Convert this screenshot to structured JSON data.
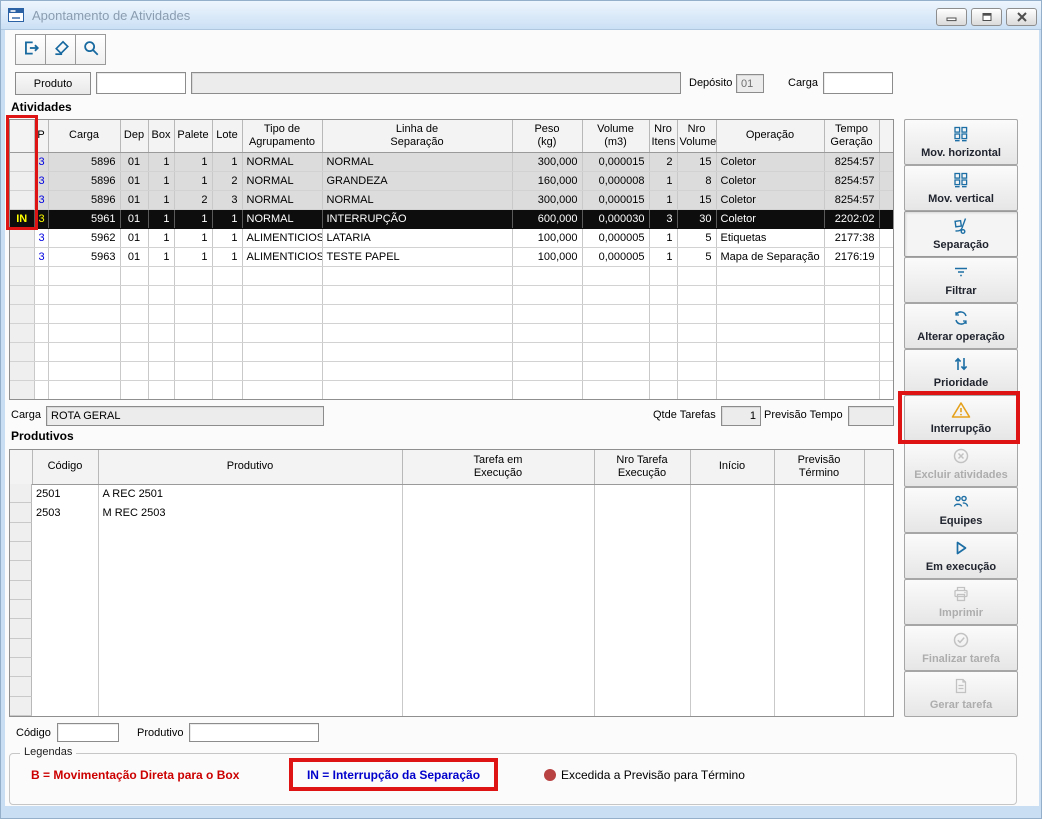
{
  "window": {
    "title": "Apontamento de Atividades"
  },
  "toolbar": {
    "buttons": [
      {
        "name": "exit",
        "icon": "exit-icon"
      },
      {
        "name": "clear",
        "icon": "eraser-icon"
      },
      {
        "name": "search",
        "icon": "search-icon"
      }
    ]
  },
  "filters": {
    "produto_button": "Produto",
    "produto_code_value": "",
    "produto_desc_value": "",
    "deposito_label": "Depósito",
    "deposito_value": "01",
    "carga_label": "Carga",
    "carga_value": ""
  },
  "atividades": {
    "section_label": "Atividades",
    "columns": [
      "",
      "P",
      "Carga",
      "Dep",
      "Box",
      "Palete",
      "Lote",
      "Tipo de\nAgrupamento",
      "Linha de\nSeparação",
      "Peso\n(kg)",
      "Volume\n(m3)",
      "Nro\nItens",
      "Nro\nVolume",
      "Operação",
      "Tempo\nGeração",
      ""
    ],
    "rows": [
      [
        "",
        "3",
        "5896",
        "01",
        "1",
        "1",
        "1",
        "NORMAL",
        "NORMAL",
        "300,000",
        "0,000015",
        "2",
        "15",
        "Coletor",
        "8254:57",
        ""
      ],
      [
        "",
        "3",
        "5896",
        "01",
        "1",
        "1",
        "2",
        "NORMAL",
        "GRANDEZA",
        "160,000",
        "0,000008",
        "1",
        "8",
        "Coletor",
        "8254:57",
        ""
      ],
      [
        "",
        "3",
        "5896",
        "01",
        "1",
        "2",
        "3",
        "NORMAL",
        "NORMAL",
        "300,000",
        "0,000015",
        "1",
        "15",
        "Coletor",
        "8254:57",
        ""
      ],
      [
        "IN",
        "3",
        "5961",
        "01",
        "1",
        "1",
        "1",
        "NORMAL",
        "INTERRUPÇÃO",
        "600,000",
        "0,000030",
        "3",
        "30",
        "Coletor",
        "2202:02",
        ""
      ],
      [
        "",
        "3",
        "5962",
        "01",
        "1",
        "1",
        "1",
        "ALIMENTICIOS",
        "LATARIA",
        "100,000",
        "0,000005",
        "1",
        "5",
        "Etiquetas",
        "2177:38",
        ""
      ],
      [
        "",
        "3",
        "5963",
        "01",
        "1",
        "1",
        "1",
        "ALIMENTICIOS",
        "TESTE PAPEL",
        "100,000",
        "0,000005",
        "1",
        "5",
        "Mapa de Separação",
        "2176:19",
        ""
      ]
    ],
    "selected_row_index": 3,
    "gray_row_indexes": [
      0,
      1,
      2
    ],
    "empty_row_count": 7
  },
  "carga_info": {
    "carga_label": "Carga",
    "carga_value": "ROTA GERAL",
    "qtde_tarefas_label": "Qtde Tarefas",
    "qtde_tarefas_value": "1",
    "previsao_tempo_label": "Previsão Tempo",
    "previsao_tempo_value": ""
  },
  "produtivos": {
    "section_label": "Produtivos",
    "columns": [
      "",
      "Código",
      "Produtivo",
      "Tarefa em\nExecução",
      "Nro Tarefa\nExecução",
      "Início",
      "Previsão\nTérmino",
      ""
    ],
    "rows": [
      [
        "2501",
        "A REC 2501",
        "",
        "",
        "",
        ""
      ],
      [
        "2503",
        "M REC 2503",
        "",
        "",
        "",
        ""
      ]
    ]
  },
  "bottom_fields": {
    "codigo_label": "Código",
    "codigo_value": "",
    "produtivo_label": "Produtivo",
    "produtivo_value": ""
  },
  "legends": {
    "group_label": "Legendas",
    "b_legend": "B = Movimentação Direta para o Box",
    "in_legend": "IN = Interrupção da Separação",
    "dot_legend": "Excedida a Previsão para Término"
  },
  "sidebar": {
    "buttons": [
      {
        "label": "Mov. horizontal",
        "icon": "pallet-boxes-icon",
        "enabled": true,
        "pressed": false,
        "highlighted": false
      },
      {
        "label": "Mov. vertical",
        "icon": "pallet-boxes-icon",
        "enabled": true,
        "pressed": false,
        "highlighted": false
      },
      {
        "label": "Separação",
        "icon": "hand-truck-icon",
        "enabled": true,
        "pressed": true,
        "highlighted": false
      },
      {
        "label": "Filtrar",
        "icon": "filter-icon",
        "enabled": true,
        "pressed": false,
        "highlighted": false
      },
      {
        "label": "Alterar operação",
        "icon": "refresh-icon",
        "enabled": true,
        "pressed": false,
        "highlighted": false
      },
      {
        "label": "Prioridade",
        "icon": "up-down-arrows-icon",
        "enabled": true,
        "pressed": false,
        "highlighted": false
      },
      {
        "label": "Interrupção",
        "icon": "warning-triangle-icon",
        "enabled": true,
        "pressed": false,
        "highlighted": true
      },
      {
        "label": "Excluir atividades",
        "icon": "circle-x-icon",
        "enabled": false,
        "pressed": false,
        "highlighted": false
      },
      {
        "label": "Equipes",
        "icon": "people-icon",
        "enabled": true,
        "pressed": false,
        "highlighted": false
      },
      {
        "label": "Em execução",
        "icon": "play-icon",
        "enabled": true,
        "pressed": false,
        "highlighted": false
      },
      {
        "label": "Imprimir",
        "icon": "printer-icon",
        "enabled": false,
        "pressed": false,
        "highlighted": false
      },
      {
        "label": "Finalizar tarefa",
        "icon": "check-circle-icon",
        "enabled": false,
        "pressed": false,
        "highlighted": false
      },
      {
        "label": "Gerar tarefa",
        "icon": "document-icon",
        "enabled": false,
        "pressed": false,
        "highlighted": false
      }
    ]
  },
  "colors": {
    "accent_blue": "#1C6EA4",
    "warning_orange": "#E5A11C",
    "highlight_red": "#DE1414",
    "legend_red": "#CC0000",
    "legend_blue": "#0000CC",
    "selected_row_bg": "#0D0D0D",
    "p_value_blue": "#0000E0",
    "disabled_gray": "#C2C2C2"
  }
}
